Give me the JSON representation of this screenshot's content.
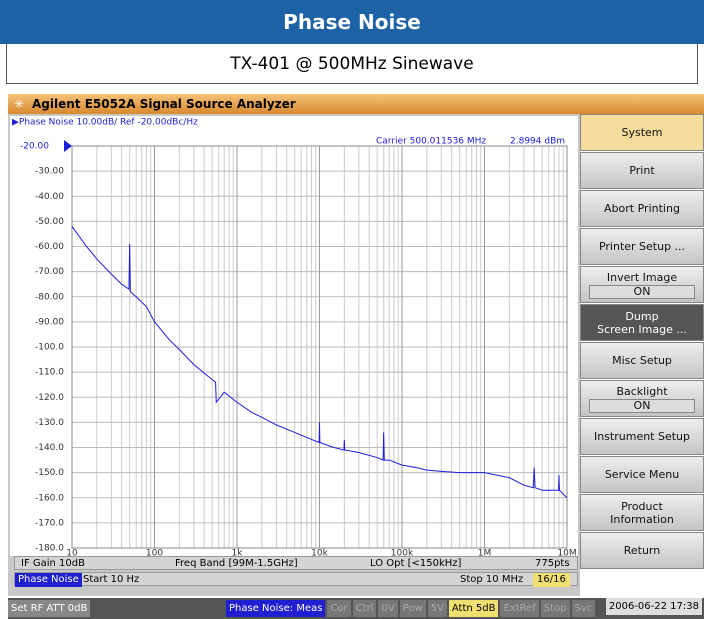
{
  "header": {
    "title": "Phase Noise",
    "subtitle": "TX-401 @ 500MHz Sinewave"
  },
  "window": {
    "title": "Agilent E5052A Signal Source Analyzer"
  },
  "chart_data": {
    "type": "line",
    "title": "▶Phase Noise 10.00dB/ Ref -20.00dBc/Hz",
    "ref_label": "-20.00",
    "annotations": [
      "Carrier 500.011536 MHz",
      "2.8994 dBm"
    ],
    "x": [
      10,
      15,
      20,
      30,
      40,
      49,
      50,
      51,
      60,
      80,
      100,
      150,
      200,
      300,
      500,
      550,
      560,
      700,
      1000,
      1500,
      2000,
      3000,
      5000,
      7000,
      9900,
      10000,
      10100,
      15000,
      19800,
      20000,
      20200,
      30000,
      50000,
      59000,
      60000,
      61000,
      70000,
      100000,
      150000,
      200000,
      300000,
      500000,
      700000,
      1000000,
      2000000,
      3000000,
      3900000,
      4000000,
      4100000,
      5000000,
      7000000,
      7900000,
      8000000,
      8100000,
      10000000
    ],
    "series": [
      {
        "color": "#1c1cd8",
        "values": [
          -52,
          -60,
          -65,
          -71,
          -75,
          -77,
          -59,
          -78,
          -80,
          -84,
          -90,
          -97,
          -101,
          -107,
          -113,
          -114,
          -122,
          -118,
          -122,
          -126,
          -128,
          -131,
          -134,
          -136,
          -138,
          -130,
          -138,
          -140,
          -141,
          -137,
          -141,
          -142,
          -144,
          -145,
          -134,
          -145,
          -145,
          -147,
          -148,
          -149,
          -149.5,
          -150,
          -150,
          -150,
          -152,
          -155,
          -156,
          -148,
          -156,
          -157,
          -157,
          -157,
          -151,
          -157,
          -160
        ]
      }
    ],
    "xlim": [
      10,
      10000000
    ],
    "ylim": [
      -180,
      -20
    ],
    "xscale": "log",
    "grid": true,
    "xticks": [
      10,
      100,
      {
        "value": 1000,
        "label": "1k"
      },
      {
        "value": 10000,
        "label": "10k"
      },
      {
        "value": 100000,
        "label": "100k"
      },
      {
        "value": 1000000,
        "label": "1M"
      },
      {
        "value": 10000000,
        "label": "10M"
      }
    ],
    "yticks": [
      {
        "value": -20,
        "label": "-20.00"
      },
      {
        "value": -30,
        "label": "-30.00"
      },
      {
        "value": -40,
        "label": "-40.00"
      },
      {
        "value": -50,
        "label": "-50.00"
      },
      {
        "value": -60,
        "label": "-60.00"
      },
      {
        "value": -70,
        "label": "-70.00"
      },
      {
        "value": -80,
        "label": "-80.00"
      },
      {
        "value": -90,
        "label": "-90.00"
      },
      {
        "value": -100,
        "label": "-100.0"
      },
      {
        "value": -110,
        "label": "-110.0"
      },
      {
        "value": -120,
        "label": "-120.0"
      },
      {
        "value": -130,
        "label": "-130.0"
      },
      {
        "value": -140,
        "label": "-140.0"
      },
      {
        "value": -150,
        "label": "-150.0"
      },
      {
        "value": -160,
        "label": "-160.0"
      },
      {
        "value": -170,
        "label": "-170.0"
      },
      {
        "value": -180,
        "label": "-180.0"
      }
    ]
  },
  "info_bar": [
    "IF Gain 10dB",
    "Freq Band [99M-1.5GHz]",
    "LO Opt [<150kHz]",
    "775pts"
  ],
  "sweep_bar": {
    "channel": "Phase Noise",
    "start": "Start 10 Hz",
    "stop": "Stop 10 MHz",
    "count": "16/16"
  },
  "status_bar": {
    "left": "Set RF ATT 0dB",
    "items": [
      "Phase Noise: Meas",
      "Cor",
      "Ctrl",
      "0V",
      "Pow",
      "5V",
      "Attn 5dB",
      "ExtRef",
      "Stop",
      "Svc"
    ],
    "time": "2006-06-22 17:38"
  },
  "softkeys": [
    {
      "label": "System",
      "highlighted": false,
      "title": true
    },
    {
      "label": "Print"
    },
    {
      "label": "Abort Printing"
    },
    {
      "label": "Printer Setup ..."
    },
    {
      "label": "Invert Image",
      "state": "ON"
    },
    {
      "label": "Dump",
      "label2": "Screen Image ...",
      "highlighted": true
    },
    {
      "label": "Misc Setup"
    },
    {
      "label": "Backlight",
      "state": "ON"
    },
    {
      "label": "Instrument Setup"
    },
    {
      "label": "Service Menu"
    },
    {
      "label": "Product",
      "label2": "Information"
    },
    {
      "label": "Return"
    }
  ]
}
